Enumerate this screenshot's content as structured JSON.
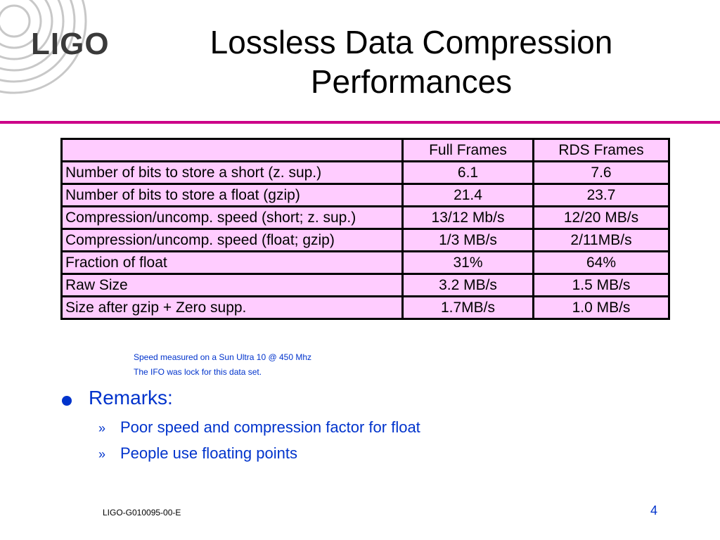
{
  "logo": {
    "text": "LIGO"
  },
  "title": {
    "line1": "Lossless Data Compression",
    "line2": "Performances"
  },
  "table": {
    "header": [
      "",
      "Full Frames",
      "RDS Frames"
    ],
    "rows": [
      [
        "Number of bits to store a short (z. sup.)",
        "6.1",
        "7.6"
      ],
      [
        "Number of bits to store a float (gzip)",
        "21.4",
        "23.7"
      ],
      [
        "Compression/uncomp. speed (short; z. sup.)",
        "13/12 Mb/s",
        "12/20 MB/s"
      ],
      [
        "Compression/uncomp. speed (float; gzip)",
        "1/3 MB/s",
        "2/11MB/s"
      ],
      [
        "Fraction of float",
        "31%",
        "64%"
      ],
      [
        "Raw Size",
        "3.2 MB/s",
        "1.5 MB/s"
      ],
      [
        "Size after gzip + Zero supp.",
        "1.7MB/s",
        "1.0 MB/s"
      ]
    ]
  },
  "notes": [
    "Speed measured on a Sun Ultra 10 @ 450 Mhz",
    "The IFO was lock for this data set."
  ],
  "remarks": {
    "heading": "Remarks:",
    "marker": "»",
    "items": [
      "Poor speed and compression factor for float",
      "People use floating points"
    ]
  },
  "footer": {
    "doc_id": "LIGO-G010095-00-E",
    "page": "4"
  },
  "colors": {
    "accent_rule": "#cc0088",
    "table_fill": "#ffccff",
    "text_blue": "#0033cc",
    "logo_gray": "#3a3a3a"
  }
}
